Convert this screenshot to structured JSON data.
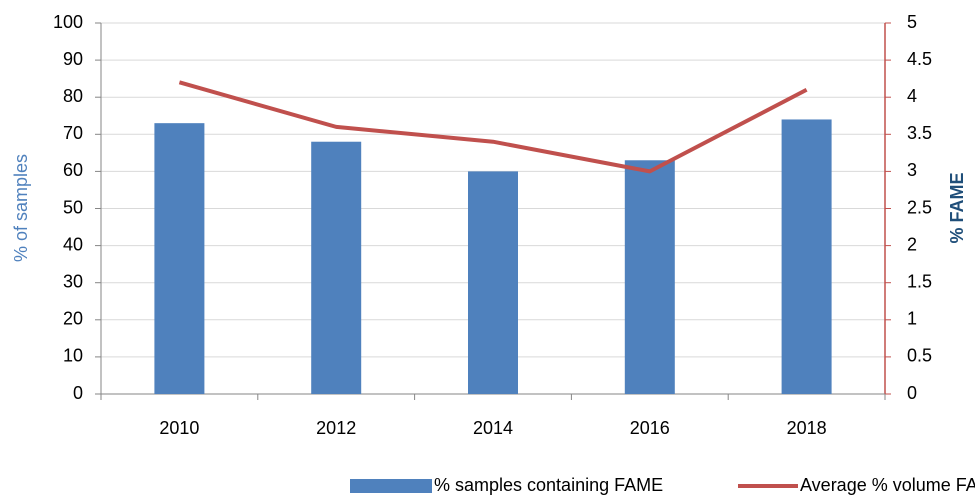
{
  "chart_data": {
    "type": "bar",
    "categories": [
      "2010",
      "2012",
      "2014",
      "2016",
      "2018"
    ],
    "series": [
      {
        "name": "% samples containing FAME",
        "type": "bar",
        "color": "#4f81bd",
        "values": [
          73,
          68,
          60,
          63,
          74
        ]
      },
      {
        "name": "Average % volume FAME",
        "type": "line",
        "axis": "y2",
        "color": "#c0504d",
        "values": [
          4.2,
          3.6,
          3.4,
          3.0,
          4.1
        ]
      }
    ],
    "ylabel": "% of samples",
    "y2label": "% FAME",
    "ylim": [
      0,
      100
    ],
    "yticks": [
      0,
      10,
      20,
      30,
      40,
      50,
      60,
      70,
      80,
      90,
      100
    ],
    "y2lim": [
      0,
      5
    ],
    "y2ticks": [
      0,
      0.5,
      1,
      1.5,
      2,
      2.5,
      3,
      3.5,
      4,
      4.5,
      5
    ],
    "grid": true,
    "legend": "bottom"
  }
}
